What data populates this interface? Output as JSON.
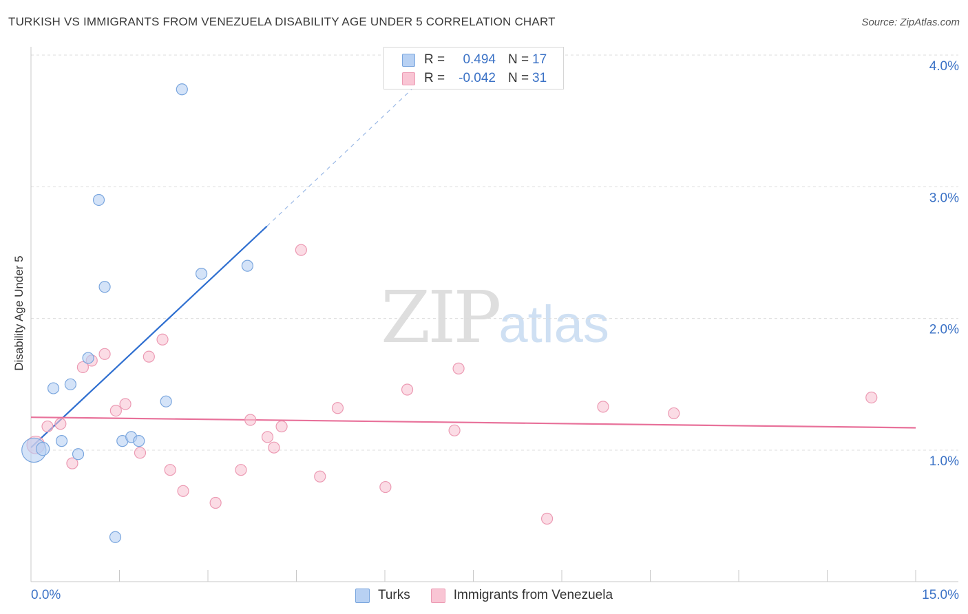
{
  "header": {
    "title": "TURKISH VS IMMIGRANTS FROM VENEZUELA DISABILITY AGE UNDER 5 CORRELATION CHART",
    "source": "Source: ZipAtlas.com"
  },
  "watermark": {
    "zip": "ZIP",
    "atlas": "atlas"
  },
  "legend_top": {
    "rows": [
      {
        "r_label": "R =",
        "r_value": "0.494",
        "n_label": "N =",
        "n_value": "17"
      },
      {
        "r_label": "R =",
        "r_value": "-0.042",
        "n_label": "N =",
        "n_value": "31"
      }
    ]
  },
  "legend_bottom": {
    "items": [
      {
        "label": "Turks"
      },
      {
        "label": "Immigrants from Venezuela"
      }
    ]
  },
  "colors": {
    "turks_fill": "#b8d1f3",
    "turks_stroke": "#7aa6de",
    "turks_line": "#2f6fd0",
    "ven_fill": "#f9c5d4",
    "ven_stroke": "#ec9ab3",
    "ven_line": "#e8719a",
    "grid": "#dcdcdc",
    "tick_text": "#3b72c6"
  },
  "chart_data": {
    "type": "scatter",
    "title": "TURKISH VS IMMIGRANTS FROM VENEZUELA DISABILITY AGE UNDER 5 CORRELATION CHART",
    "xlabel": "",
    "ylabel": "Disability Age Under 5",
    "xlim": [
      0,
      15
    ],
    "ylim": [
      0,
      4.1
    ],
    "x_tick_labels": [
      "0.0%",
      "15.0%"
    ],
    "y_ticks": [
      1.0,
      2.0,
      3.0,
      4.0
    ],
    "y_tick_labels": [
      "1.0%",
      "2.0%",
      "3.0%",
      "4.0%"
    ],
    "grid": true,
    "series": [
      {
        "name": "Turks",
        "color": "#b8d1f3",
        "points": [
          {
            "x": 0.05,
            "y": 1.0,
            "s": 2.2
          },
          {
            "x": 0.2,
            "y": 1.01,
            "s": 1.2
          },
          {
            "x": 0.38,
            "y": 1.47,
            "s": 1
          },
          {
            "x": 0.52,
            "y": 1.07,
            "s": 1
          },
          {
            "x": 0.67,
            "y": 1.5,
            "s": 1
          },
          {
            "x": 0.8,
            "y": 0.97,
            "s": 1
          },
          {
            "x": 0.97,
            "y": 1.7,
            "s": 1
          },
          {
            "x": 1.15,
            "y": 2.9,
            "s": 1
          },
          {
            "x": 1.25,
            "y": 2.24,
            "s": 1
          },
          {
            "x": 1.43,
            "y": 0.34,
            "s": 1
          },
          {
            "x": 1.55,
            "y": 1.07,
            "s": 1
          },
          {
            "x": 1.7,
            "y": 1.1,
            "s": 1
          },
          {
            "x": 1.83,
            "y": 1.07,
            "s": 1
          },
          {
            "x": 2.29,
            "y": 1.37,
            "s": 1
          },
          {
            "x": 2.56,
            "y": 3.74,
            "s": 1
          },
          {
            "x": 2.89,
            "y": 2.34,
            "s": 1
          },
          {
            "x": 3.67,
            "y": 2.4,
            "s": 1
          }
        ],
        "trend": {
          "x1": 0.0,
          "y1": 1.02,
          "x2": 4.0,
          "y2": 2.7,
          "dash_to_x": 6.55,
          "dash_to_y": 3.78
        }
      },
      {
        "name": "Immigrants from Venezuela",
        "color": "#f9c5d4",
        "points": [
          {
            "x": 0.08,
            "y": 1.04,
            "s": 1.6
          },
          {
            "x": 0.28,
            "y": 1.18,
            "s": 1
          },
          {
            "x": 0.5,
            "y": 1.2,
            "s": 1
          },
          {
            "x": 0.7,
            "y": 0.9,
            "s": 1
          },
          {
            "x": 0.88,
            "y": 1.63,
            "s": 1
          },
          {
            "x": 1.03,
            "y": 1.68,
            "s": 1
          },
          {
            "x": 1.25,
            "y": 1.73,
            "s": 1
          },
          {
            "x": 1.44,
            "y": 1.3,
            "s": 1
          },
          {
            "x": 1.6,
            "y": 1.35,
            "s": 1
          },
          {
            "x": 1.85,
            "y": 0.98,
            "s": 1
          },
          {
            "x": 2.0,
            "y": 1.71,
            "s": 1
          },
          {
            "x": 2.23,
            "y": 1.84,
            "s": 1
          },
          {
            "x": 2.36,
            "y": 0.85,
            "s": 1
          },
          {
            "x": 2.58,
            "y": 0.69,
            "s": 1
          },
          {
            "x": 3.13,
            "y": 0.6,
            "s": 1
          },
          {
            "x": 3.56,
            "y": 0.85,
            "s": 1
          },
          {
            "x": 3.72,
            "y": 1.23,
            "s": 1
          },
          {
            "x": 4.01,
            "y": 1.1,
            "s": 1
          },
          {
            "x": 4.12,
            "y": 1.02,
            "s": 1
          },
          {
            "x": 4.25,
            "y": 1.18,
            "s": 1
          },
          {
            "x": 4.58,
            "y": 2.52,
            "s": 1
          },
          {
            "x": 4.9,
            "y": 0.8,
            "s": 1
          },
          {
            "x": 5.2,
            "y": 1.32,
            "s": 1
          },
          {
            "x": 6.01,
            "y": 0.72,
            "s": 1
          },
          {
            "x": 6.38,
            "y": 1.46,
            "s": 1
          },
          {
            "x": 7.18,
            "y": 1.15,
            "s": 1
          },
          {
            "x": 7.25,
            "y": 1.62,
            "s": 1
          },
          {
            "x": 8.75,
            "y": 0.48,
            "s": 1
          },
          {
            "x": 9.7,
            "y": 1.33,
            "s": 1
          },
          {
            "x": 10.9,
            "y": 1.28,
            "s": 1
          },
          {
            "x": 14.25,
            "y": 1.4,
            "s": 1
          }
        ],
        "trend": {
          "x1": 0.0,
          "y1": 1.25,
          "x2": 15.0,
          "y2": 1.17
        }
      }
    ]
  }
}
